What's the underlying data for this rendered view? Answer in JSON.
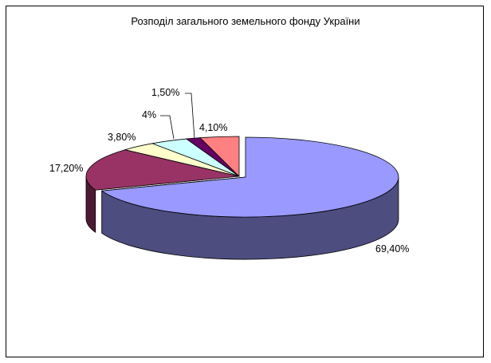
{
  "chart_data": {
    "type": "pie",
    "style": "3d-exploded-first-slice",
    "title": "Розподіл загального земельного фонду України",
    "slices": [
      {
        "label": "69,40%",
        "value": 69.4,
        "color": "#9999ff",
        "side_color": "#4d4d80"
      },
      {
        "label": "17,20%",
        "value": 17.2,
        "color": "#993366",
        "side_color": "#4d1a33"
      },
      {
        "label": "3,80%",
        "value": 3.8,
        "color": "#ffffcc",
        "side_color": "#808066"
      },
      {
        "label": "4%",
        "value": 4.0,
        "color": "#ccffff",
        "side_color": "#668080"
      },
      {
        "label": "1,50%",
        "value": 1.5,
        "color": "#660066",
        "side_color": "#330033"
      },
      {
        "label": "4,10%",
        "value": 4.1,
        "color": "#ff8080",
        "side_color": "#804040"
      }
    ],
    "legend": "none",
    "border": true
  }
}
